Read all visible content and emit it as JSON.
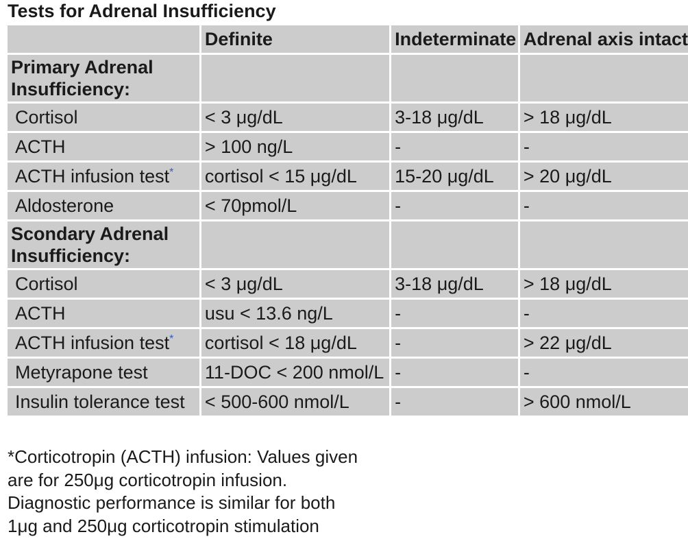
{
  "title": "Tests for Adrenal Insufficiency",
  "table": {
    "headers": [
      "",
      "Definite",
      "Indeterminate",
      "Adrenal axis intact"
    ],
    "primary": {
      "label": "Primary Adrenal Insufficiency:",
      "rows": [
        {
          "test": "Cortisol",
          "note": "",
          "definite": "< 3 μg/dL",
          "indeterminate": "3-18 μg/dL",
          "intact": "> 18 μg/dL"
        },
        {
          "test": "ACTH",
          "note": "",
          "definite": "> 100 ng/L",
          "indeterminate": "-",
          "intact": "-"
        },
        {
          "test": "ACTH infusion test",
          "note": "*",
          "definite": "cortisol < 15 μg/dL",
          "indeterminate": "15-20 μg/dL",
          "intact": "> 20 μg/dL"
        },
        {
          "test": "Aldosterone",
          "note": "",
          "definite": "< 70pmol/L",
          "indeterminate": "-",
          "intact": "-"
        }
      ]
    },
    "secondary": {
      "label": "Scondary Adrenal Insufficiency:",
      "rows": [
        {
          "test": "Cortisol",
          "note": "",
          "definite": "< 3 μg/dL",
          "indeterminate": "3-18 μg/dL",
          "intact": "> 18 μg/dL"
        },
        {
          "test": "ACTH",
          "note": "",
          "definite": "usu < 13.6 ng/L",
          "indeterminate": "-",
          "intact": "-"
        },
        {
          "test": "ACTH infusion test",
          "note": "*",
          "definite": "cortisol < 18 μg/dL",
          "indeterminate": "-",
          "intact": "> 22 μg/dL"
        },
        {
          "test": "Metyrapone test",
          "note": "",
          "definite": "11-DOC < 200 nmol/L",
          "indeterminate": "-",
          "intact": "-"
        },
        {
          "test": "Insulin tolerance test",
          "note": "",
          "definite": "< 500-600 nmol/L",
          "indeterminate": "-",
          "intact": "> 600 nmol/L"
        }
      ]
    }
  },
  "footnote": {
    "lines": [
      "*Corticotropin (ACTH) infusion: Values given",
      "are for 250μg corticotropin infusion.",
      "Diagnostic performance is similar for both",
      "1μg and 250μg corticotropin stimulation"
    ]
  }
}
